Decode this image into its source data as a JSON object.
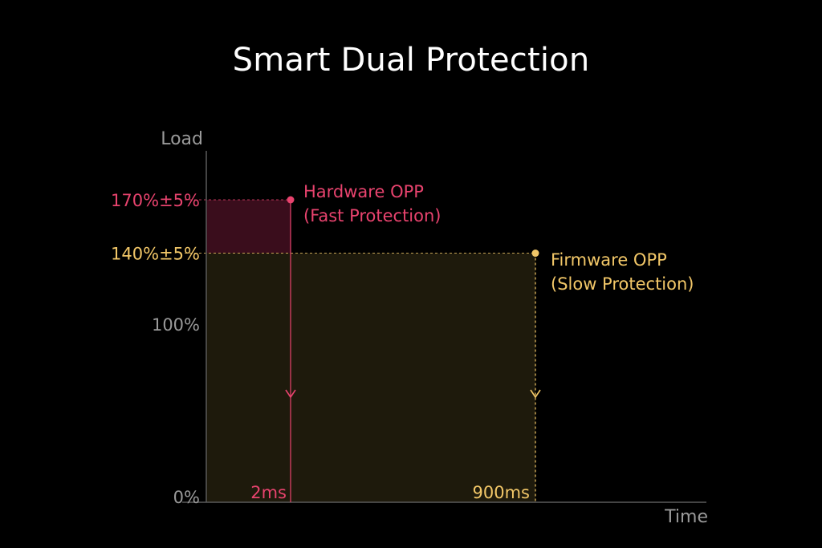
{
  "title": "Smart Dual Protection",
  "colors": {
    "background": "#000000",
    "axis": "#5a5a5a",
    "axis_label": "#9a9a9a",
    "hardware": "#e8436e",
    "firmware": "#f2c768",
    "hardware_fill": "#3a0d1c",
    "firmware_fill": "#1e1a0c"
  },
  "chart_data": {
    "type": "area",
    "xlabel": "Time",
    "ylabel": "Load",
    "y_ticks": [
      {
        "label": "0%",
        "value": 0
      },
      {
        "label": "100%",
        "value": 100
      },
      {
        "label": "140%±5%",
        "value": 140
      },
      {
        "label": "170%±5%",
        "value": 170
      }
    ],
    "ylim": [
      0,
      190
    ],
    "series": [
      {
        "name": "Hardware OPP",
        "label_line1": "Hardware OPP",
        "label_line2": "(Fast Protection)",
        "load": 170,
        "time_label": "2ms",
        "color_key": "hardware"
      },
      {
        "name": "Firmware OPP",
        "label_line1": "Firmware OPP",
        "label_line2": "(Slow Protection)",
        "load": 140,
        "time_label": "900ms",
        "color_key": "firmware"
      }
    ]
  }
}
